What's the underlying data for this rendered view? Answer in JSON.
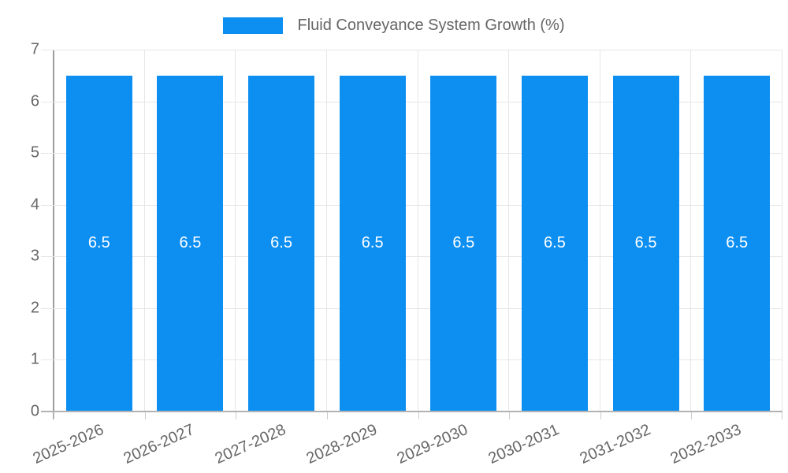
{
  "chart_data": {
    "type": "bar",
    "title": "Fluid Conveyance System Growth (%)",
    "legend": {
      "position": "top",
      "label": "Fluid Conveyance System Growth (%)"
    },
    "categories": [
      "2025-2026",
      "2026-2027",
      "2027-2028",
      "2028-2029",
      "2029-2030",
      "2030-2031",
      "2031-2032",
      "2032-2033"
    ],
    "series": [
      {
        "name": "Fluid Conveyance System Growth (%)",
        "values": [
          6.5,
          6.5,
          6.5,
          6.5,
          6.5,
          6.5,
          6.5,
          6.5
        ],
        "value_labels": [
          "6.5",
          "6.5",
          "6.5",
          "6.5",
          "6.5",
          "6.5",
          "6.5",
          "6.5"
        ]
      }
    ],
    "xlabel": "",
    "ylabel": "",
    "ylim": [
      0,
      7
    ],
    "yticks": [
      0,
      1,
      2,
      3,
      4,
      5,
      6,
      7
    ],
    "grid": true,
    "colors": {
      "bar": "#0d8ff2",
      "value_label": "#ffffff",
      "axis_text": "#666666",
      "gridline": "#e6e6e6",
      "axis_line": "#b3b3b3"
    }
  }
}
